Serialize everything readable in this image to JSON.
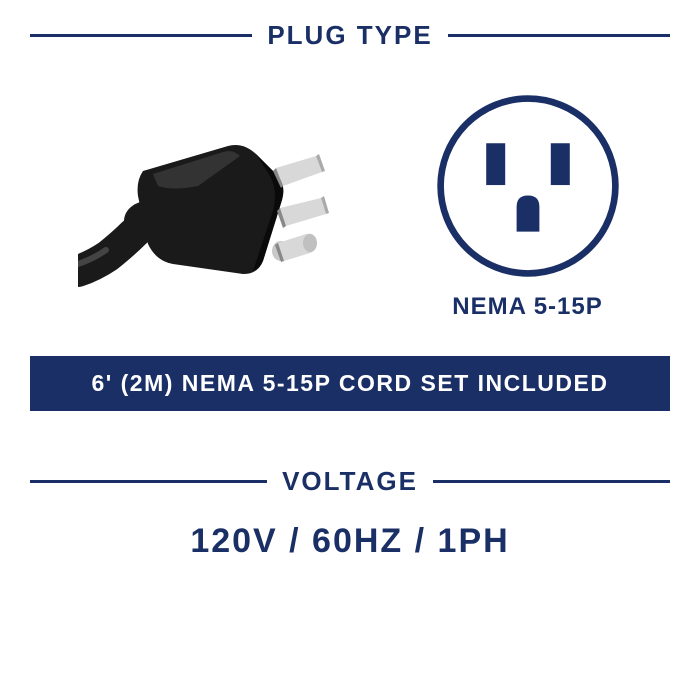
{
  "colors": {
    "navy": "#1a2f66",
    "white": "#ffffff",
    "black": "#000000",
    "plug_body": "#1a1a1a",
    "plug_highlight": "#3a3a3a",
    "prong": "#d0d0d0",
    "prong_shadow": "#808080"
  },
  "plug_type": {
    "header": "PLUG TYPE",
    "header_fontsize": 26,
    "outlet_label": "NEMA 5-15P",
    "outlet_label_fontsize": 24,
    "outlet_stroke_width": 7,
    "banner": "6' (2M) NEMA 5-15P CORD SET INCLUDED",
    "banner_fontsize": 23
  },
  "voltage": {
    "header": "VOLTAGE",
    "header_fontsize": 26,
    "value": "120V / 60HZ / 1PH",
    "value_fontsize": 34
  },
  "line_thickness": 3
}
